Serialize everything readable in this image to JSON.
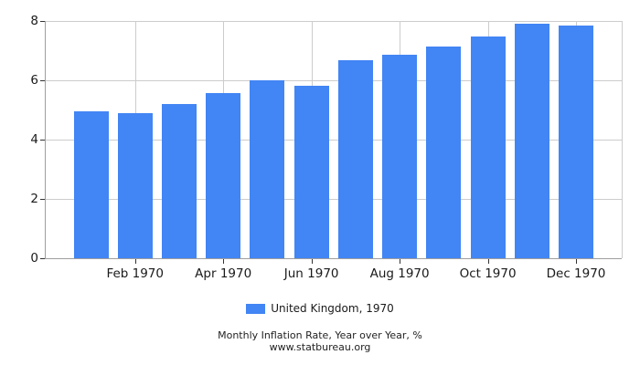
{
  "chart_data": {
    "type": "bar",
    "title": "Monthly Inflation Rate, Year over Year, %",
    "source": "www.statbureau.org",
    "legend": "United Kingdom, 1970",
    "categories": [
      "Jan 1970",
      "Feb 1970",
      "Mar 1970",
      "Apr 1970",
      "May 1970",
      "Jun 1970",
      "Jul 1970",
      "Aug 1970",
      "Sep 1970",
      "Oct 1970",
      "Nov 1970",
      "Dec 1970"
    ],
    "values": [
      4.95,
      4.9,
      5.19,
      5.56,
      6.01,
      5.83,
      6.68,
      6.85,
      7.14,
      7.49,
      7.9,
      7.86
    ],
    "x_tick_labels": [
      "Feb 1970",
      "Apr 1970",
      "Jun 1970",
      "Aug 1970",
      "Oct 1970",
      "Dec 1970"
    ],
    "x_tick_month_indices": [
      1,
      3,
      5,
      7,
      9,
      11
    ],
    "y_ticks": [
      0,
      2,
      4,
      6,
      8
    ],
    "ylim": [
      0,
      8
    ],
    "grid": true,
    "legend_position": "bottom",
    "colors": {
      "bar": "#4285f4",
      "gridline": "#cccccc",
      "axis_line": "#9e9e9e",
      "tick_mark": "#333333",
      "text": "#1a1a1a"
    }
  }
}
